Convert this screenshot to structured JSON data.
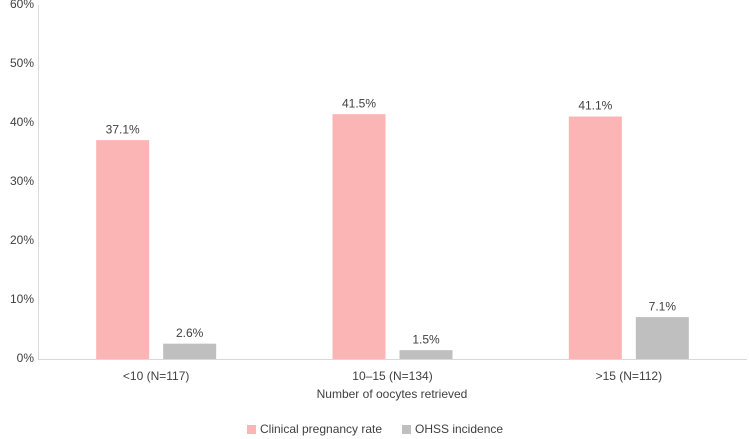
{
  "chart_data": {
    "type": "bar",
    "x_label": "Number of oocytes retrieved",
    "categories": [
      "<10 (N=117)",
      "10–15 (N=134)",
      ">15 (N=112)"
    ],
    "series": [
      {
        "name": "Clinical pregnancy rate",
        "color": "#fbb5b5",
        "values": [
          37.1,
          41.5,
          41.1
        ],
        "value_labels": [
          "37.1%",
          "41.5%",
          "41.1%"
        ]
      },
      {
        "name": "OHSS incidence",
        "color": "#bfbfbf",
        "values": [
          2.6,
          1.5,
          7.1
        ],
        "value_labels": [
          "2.6%",
          "1.5%",
          "7.1%"
        ]
      }
    ],
    "ylim": [
      0,
      60
    ],
    "yticks": [
      {
        "value": 0,
        "label": "0%"
      },
      {
        "value": 10,
        "label": "10%"
      },
      {
        "value": 20,
        "label": "20%"
      },
      {
        "value": 30,
        "label": "30%"
      },
      {
        "value": 40,
        "label": "40%"
      },
      {
        "value": 50,
        "label": "50%"
      },
      {
        "value": 60,
        "label": "60%"
      }
    ],
    "legend": "bottom"
  }
}
